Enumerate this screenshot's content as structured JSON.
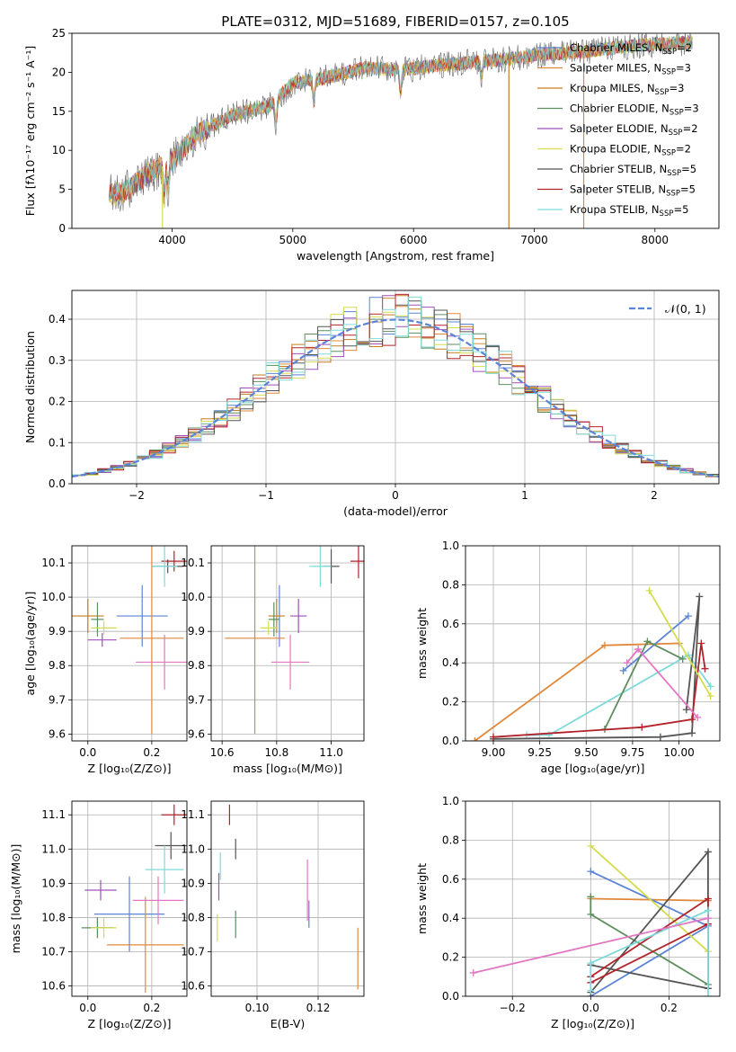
{
  "figure_title": "PLATE=0312, MJD=51689, FIBERID=0157, z=0.105",
  "models": [
    {
      "name": "Chabrier MILES, N",
      "sub": "SSP",
      "n": "=2",
      "color": "#5b84d6"
    },
    {
      "name": "Salpeter MILES, N",
      "sub": "SSP",
      "n": "=3",
      "color": "#e0883a"
    },
    {
      "name": "Kroupa MILES, N",
      "sub": "SSP",
      "n": "=3",
      "color": "#c57d1e"
    },
    {
      "name": "Chabrier ELODIE, N",
      "sub": "SSP",
      "n": "=3",
      "color": "#5e8d5e"
    },
    {
      "name": "Salpeter ELODIE, N",
      "sub": "SSP",
      "n": "=2",
      "color": "#9f50b8"
    },
    {
      "name": "Kroupa ELODIE, N",
      "sub": "SSP",
      "n": "=2",
      "color": "#d4dc4e"
    },
    {
      "name": "Chabrier STELIB, N",
      "sub": "SSP",
      "n": "=5",
      "color": "#555555"
    },
    {
      "name": "Salpeter STELIB, N",
      "sub": "SSP",
      "n": "=5",
      "color": "#b3232a"
    },
    {
      "name": "Kroupa STELIB, N",
      "sub": "SSP",
      "n": "=5",
      "color": "#7fd9d9"
    }
  ],
  "chart_data": [
    {
      "type": "line",
      "title": "PLATE=0312, MJD=51689, FIBERID=0157, z=0.105",
      "xlabel": "wavelength [Angstrom, rest frame]",
      "ylabel": "Flux [fλ10⁻¹⁷ erg cm⁻² s⁻¹ A⁻¹]",
      "xlim": [
        3170,
        8530
      ],
      "ylim": [
        0,
        25
      ],
      "xticks": [
        4000,
        5000,
        6000,
        7000,
        8000
      ],
      "yticks": [
        0,
        5,
        10,
        15,
        20,
        25
      ],
      "legend": "upper-right",
      "spectrum_profile": {
        "x": [
          3480,
          3600,
          3800,
          4000,
          4200,
          4500,
          4800,
          5000,
          5300,
          5600,
          5900,
          6200,
          6500,
          6800,
          7100,
          7400,
          7700,
          8000,
          8300
        ],
        "y": [
          4.3,
          4.6,
          7.0,
          8.6,
          12.0,
          14.6,
          15.6,
          18.6,
          19.4,
          20.6,
          20.3,
          20.9,
          21.3,
          21.7,
          22.3,
          22.6,
          23.2,
          23.6,
          23.8
        ]
      },
      "dips": [
        {
          "x": 3934,
          "depth": 4
        },
        {
          "x": 3968,
          "depth": 3
        },
        {
          "x": 4861,
          "depth": 3
        },
        {
          "x": 5175,
          "depth": 3
        },
        {
          "x": 5893,
          "depth": 3
        },
        {
          "x": 6563,
          "depth": 2
        }
      ],
      "vertical_spikes": [
        {
          "x": 3920,
          "ylow": 0,
          "color": "#d4dc4e"
        },
        {
          "x": 6790,
          "ylow": 0,
          "color": "#c57d1e"
        },
        {
          "x": 7410,
          "ylow": 0,
          "color": "#e0883a"
        }
      ]
    },
    {
      "type": "bar",
      "xlabel": "(data-model)/error",
      "ylabel": "Normed distribution",
      "xlim": [
        -2.5,
        2.5
      ],
      "ylim": [
        0,
        0.47
      ],
      "xticks": [
        -2,
        -1,
        0,
        1,
        2
      ],
      "yticks": [
        0.0,
        0.1,
        0.2,
        0.3,
        0.4
      ],
      "bin_width": 0.1,
      "reference": {
        "name": "𝒩(0, 1)",
        "color": "#5b84d6"
      },
      "legend": "upper-right"
    },
    {
      "type": "scatter",
      "xlabel": "Z [log₁₀(Z/Z⊙)]",
      "ylabel": "age  [log₁₀(age/yr)]",
      "xlim": [
        -0.05,
        0.31
      ],
      "ylim": [
        9.58,
        10.15
      ],
      "xticks": [
        0.0,
        0.2
      ],
      "yticks": [
        9.6,
        9.7,
        9.8,
        9.9,
        10.0,
        10.1
      ],
      "points": [
        {
          "m": 0,
          "x": 0.17,
          "xe": 0.08,
          "y": 9.945,
          "ye": 0.09
        },
        {
          "m": 1,
          "x": 0.2,
          "xe": 0.1,
          "y": 9.88,
          "ye": 0.28
        },
        {
          "m": 2,
          "x": 0.0,
          "xe": 0.05,
          "y": 9.945,
          "ye": 0.05
        },
        {
          "m": 3,
          "x": 0.03,
          "xe": 0.02,
          "y": 9.935,
          "ye": 0.05
        },
        {
          "m": 4,
          "x": 0.045,
          "xe": 0.045,
          "y": 9.875,
          "ye": 0.02
        },
        {
          "m": 5,
          "x": 0.05,
          "xe": 0.04,
          "y": 9.91,
          "ye": 0.02
        },
        {
          "m": 6,
          "x": 0.25,
          "xe": 0.05,
          "y": 10.09,
          "ye": 0.02
        },
        {
          "m": 7,
          "x": 0.27,
          "xe": 0.04,
          "y": 10.105,
          "ye": 0.03
        },
        {
          "m": 8,
          "x": 0.24,
          "xe": 0.04,
          "y": 10.09,
          "ye": 0.06
        },
        {
          "m": 1,
          "x": 0.24,
          "xe": 0.09,
          "y": 9.81,
          "ye": 0.08,
          "color": "#e377c2"
        }
      ]
    },
    {
      "type": "scatter",
      "xlabel": "mass [log₁₀(M/M⊙)]",
      "xlim": [
        10.56,
        11.12
      ],
      "ylim": [
        9.58,
        10.15
      ],
      "xticks": [
        10.6,
        10.8,
        11.0
      ],
      "yticks": [
        9.6,
        9.7,
        9.8,
        9.9,
        10.0,
        10.1
      ],
      "points": [
        {
          "m": 0,
          "x": 10.81,
          "xe": 0.0,
          "y": 9.945,
          "ye": 0.09
        },
        {
          "m": 1,
          "x": 10.72,
          "xe": 0.11,
          "y": 9.88,
          "ye": 0.28
        },
        {
          "m": 2,
          "x": 10.8,
          "xe": 0.03,
          "y": 9.945,
          "ye": 0.05
        },
        {
          "m": 3,
          "x": 10.79,
          "xe": 0.02,
          "y": 9.935,
          "ye": 0.05
        },
        {
          "m": 4,
          "x": 10.88,
          "xe": 0.03,
          "y": 9.945,
          "ye": 0.05
        },
        {
          "m": 5,
          "x": 10.77,
          "xe": 0.03,
          "y": 9.91,
          "ye": 0.02
        },
        {
          "m": 6,
          "x": 11.0,
          "xe": 0.03,
          "y": 10.09,
          "ye": 0.05
        },
        {
          "m": 7,
          "x": 11.1,
          "xe": 0.03,
          "y": 10.105,
          "ye": 0.05
        },
        {
          "m": 8,
          "x": 10.96,
          "xe": 0.04,
          "y": 10.09,
          "ye": 0.06
        },
        {
          "m": 1,
          "x": 10.85,
          "xe": 0.07,
          "y": 9.81,
          "ye": 0.08,
          "color": "#e377c2"
        }
      ]
    },
    {
      "type": "line",
      "xlabel": "age  [log₁₀(age/yr)]",
      "ylabel": "mass weight",
      "xlim": [
        8.85,
        10.22
      ],
      "ylim": [
        0,
        1.0
      ],
      "xticks": [
        9.0,
        9.25,
        9.5,
        9.75,
        10.0
      ],
      "yticks": [
        0.0,
        0.2,
        0.4,
        0.6,
        0.8,
        1.0
      ],
      "series": [
        {
          "m": 1,
          "x": [
            8.9,
            9.6,
            10.0
          ],
          "y": [
            0.0,
            0.49,
            0.5
          ]
        },
        {
          "m": 0,
          "x": [
            9.7,
            10.05
          ],
          "y": [
            0.36,
            0.64
          ]
        },
        {
          "m": 8,
          "x": [
            9.18,
            9.3,
            10.05,
            10.17
          ],
          "y": [
            0.03,
            0.03,
            0.44,
            0.28
          ]
        },
        {
          "m": 3,
          "x": [
            9.6,
            9.83,
            10.02
          ],
          "y": [
            0.06,
            0.51,
            0.42
          ]
        },
        {
          "m": 6,
          "x": [
            9.0,
            9.9,
            10.07,
            10.11,
            10.04
          ],
          "y": [
            0.01,
            0.02,
            0.04,
            0.74,
            0.16
          ]
        },
        {
          "m": 7,
          "x": [
            9.0,
            9.8,
            10.07,
            10.12,
            10.14
          ],
          "y": [
            0.02,
            0.07,
            0.11,
            0.5,
            0.37
          ]
        },
        {
          "m": 5,
          "x": [
            9.84,
            10.17
          ],
          "y": [
            0.77,
            0.23
          ]
        },
        {
          "m": 4,
          "x": [
            9.72,
            9.78
          ],
          "y": [
            0.4,
            0.47
          ],
          "color": "#e377c2"
        },
        {
          "m": 4,
          "x": [
            9.78,
            10.1
          ],
          "y": [
            0.47,
            0.12
          ],
          "color": "#e377c2"
        }
      ]
    },
    {
      "type": "scatter",
      "xlabel": "Z [log₁₀(Z/Z⊙)]",
      "ylabel": "mass [log₁₀(M/M⊙)]",
      "xlim": [
        -0.05,
        0.31
      ],
      "ylim": [
        10.57,
        11.14
      ],
      "xticks": [
        0.0,
        0.2
      ],
      "yticks": [
        10.6,
        10.7,
        10.8,
        10.9,
        11.0,
        11.1
      ],
      "points": [
        {
          "m": 0,
          "x": 0.13,
          "xe": 0.11,
          "y": 10.81,
          "ye": 0.11
        },
        {
          "m": 1,
          "x": 0.18,
          "xe": 0.12,
          "y": 10.72,
          "ye": 0.14
        },
        {
          "m": 2,
          "x": 0.03,
          "xe": 0.02,
          "y": 10.77,
          "ye": 0.03
        },
        {
          "m": 3,
          "x": 0.03,
          "xe": 0.05,
          "y": 10.77,
          "ye": 0.03
        },
        {
          "m": 4,
          "x": 0.04,
          "xe": 0.05,
          "y": 10.88,
          "ye": 0.03
        },
        {
          "m": 5,
          "x": 0.05,
          "xe": 0.04,
          "y": 10.77,
          "ye": 0.03
        },
        {
          "m": 6,
          "x": 0.26,
          "xe": 0.05,
          "y": 11.01,
          "ye": 0.04
        },
        {
          "m": 7,
          "x": 0.27,
          "xe": 0.04,
          "y": 11.1,
          "ye": 0.03
        },
        {
          "m": 8,
          "x": 0.24,
          "xe": 0.06,
          "y": 10.94,
          "ye": 0.07
        },
        {
          "m": 1,
          "x": 0.22,
          "xe": 0.08,
          "y": 10.85,
          "ye": 0.07,
          "color": "#e377c2"
        }
      ]
    },
    {
      "type": "scatter",
      "xlabel": "E(B-V)",
      "xlim": [
        0.085,
        0.135
      ],
      "ylim": [
        10.57,
        11.14
      ],
      "xticks": [
        0.1,
        0.12
      ],
      "yticks": [
        10.6,
        10.7,
        10.8,
        10.9,
        11.0,
        11.1
      ],
      "points": [
        {
          "m": 0,
          "x": 0.117,
          "y": 10.81,
          "ye": 0.04
        },
        {
          "m": 1,
          "x": 0.133,
          "y": 10.68,
          "ye": 0.09
        },
        {
          "m": 3,
          "x": 0.093,
          "y": 10.78,
          "ye": 0.04
        },
        {
          "m": 4,
          "x": 0.0875,
          "y": 10.89,
          "ye": 0.04
        },
        {
          "m": 5,
          "x": 0.087,
          "y": 10.77,
          "ye": 0.04
        },
        {
          "m": 6,
          "x": 0.093,
          "y": 11.0,
          "ye": 0.03
        },
        {
          "m": 7,
          "x": 0.091,
          "y": 11.1,
          "ye": 0.03
        },
        {
          "m": 8,
          "x": 0.088,
          "y": 10.95,
          "ye": 0.04
        },
        {
          "m": 1,
          "x": 0.1165,
          "y": 10.88,
          "ye": 0.09,
          "color": "#e377c2"
        }
      ]
    },
    {
      "type": "line",
      "xlabel": "Z [log₁₀(Z/Z⊙)]",
      "ylabel": "mass weight",
      "xlim": [
        -0.32,
        0.33
      ],
      "ylim": [
        0,
        1.0
      ],
      "xticks": [
        -0.2,
        0.0,
        0.2
      ],
      "yticks": [
        0.0,
        0.2,
        0.4,
        0.6,
        0.8,
        1.0
      ],
      "series": [
        {
          "m": 1,
          "x": [
            0.0,
            0.3
          ],
          "y": [
            0.5,
            0.49
          ]
        },
        {
          "m": 0,
          "x": [
            0.0,
            0.3,
            0.0
          ],
          "y": [
            0.64,
            0.36,
            0.0
          ]
        },
        {
          "m": 5,
          "x": [
            0.0,
            0.3
          ],
          "y": [
            0.77,
            0.23
          ]
        },
        {
          "m": 3,
          "x": [
            0.0,
            0.0,
            0.3
          ],
          "y": [
            0.51,
            0.42,
            0.06
          ]
        },
        {
          "m": 6,
          "x": [
            0.0,
            0.3,
            0.3,
            0.0
          ],
          "y": [
            0.02,
            0.74,
            0.04,
            0.16
          ]
        },
        {
          "m": 7,
          "x": [
            0.0,
            0.3,
            0.3,
            0.0
          ],
          "y": [
            0.1,
            0.5,
            0.37,
            0.07
          ]
        },
        {
          "m": 8,
          "x": [
            0.0,
            0.0,
            0.3,
            0.3
          ],
          "y": [
            0.03,
            0.17,
            0.44,
            0.0
          ]
        },
        {
          "m": 4,
          "x": [
            -0.3,
            0.3
          ],
          "y": [
            0.12,
            0.4
          ],
          "color": "#e377c2"
        }
      ]
    }
  ]
}
